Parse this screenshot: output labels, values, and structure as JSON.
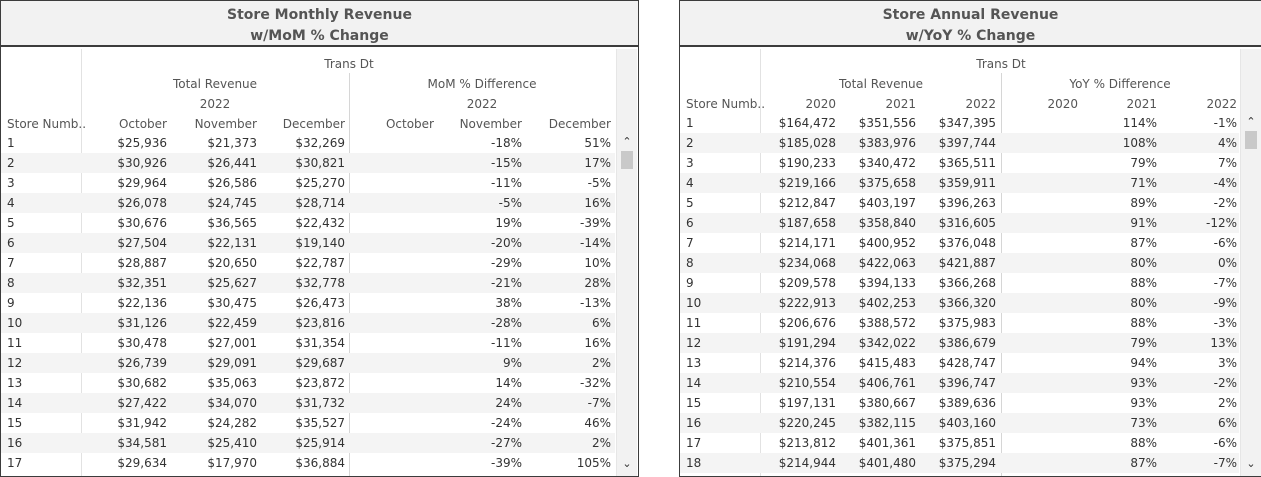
{
  "left": {
    "title_line1": "Store Monthly Revenue",
    "title_line2": "w/MoM % Change",
    "trans_dt": "Trans Dt",
    "group_total": "Total Revenue",
    "group_diff": "MoM % Difference",
    "year_total": "2022",
    "year_diff": "2022",
    "row_header": "Store Numb..",
    "months": [
      "October",
      "November",
      "December"
    ],
    "diff_months": [
      "October",
      "November",
      "December"
    ],
    "rows": [
      {
        "store": "1",
        "oct": "$25,936",
        "nov": "$21,373",
        "dec": "$32,269",
        "d_oct": "",
        "d_nov": "-18%",
        "d_dec": "51%"
      },
      {
        "store": "2",
        "oct": "$30,926",
        "nov": "$26,441",
        "dec": "$30,821",
        "d_oct": "",
        "d_nov": "-15%",
        "d_dec": "17%"
      },
      {
        "store": "3",
        "oct": "$29,964",
        "nov": "$26,586",
        "dec": "$25,270",
        "d_oct": "",
        "d_nov": "-11%",
        "d_dec": "-5%"
      },
      {
        "store": "4",
        "oct": "$26,078",
        "nov": "$24,745",
        "dec": "$28,714",
        "d_oct": "",
        "d_nov": "-5%",
        "d_dec": "16%"
      },
      {
        "store": "5",
        "oct": "$30,676",
        "nov": "$36,565",
        "dec": "$22,432",
        "d_oct": "",
        "d_nov": "19%",
        "d_dec": "-39%"
      },
      {
        "store": "6",
        "oct": "$27,504",
        "nov": "$22,131",
        "dec": "$19,140",
        "d_oct": "",
        "d_nov": "-20%",
        "d_dec": "-14%"
      },
      {
        "store": "7",
        "oct": "$28,887",
        "nov": "$20,650",
        "dec": "$22,787",
        "d_oct": "",
        "d_nov": "-29%",
        "d_dec": "10%"
      },
      {
        "store": "8",
        "oct": "$32,351",
        "nov": "$25,627",
        "dec": "$32,778",
        "d_oct": "",
        "d_nov": "-21%",
        "d_dec": "28%"
      },
      {
        "store": "9",
        "oct": "$22,136",
        "nov": "$30,475",
        "dec": "$26,473",
        "d_oct": "",
        "d_nov": "38%",
        "d_dec": "-13%"
      },
      {
        "store": "10",
        "oct": "$31,126",
        "nov": "$22,459",
        "dec": "$23,816",
        "d_oct": "",
        "d_nov": "-28%",
        "d_dec": "6%"
      },
      {
        "store": "11",
        "oct": "$30,478",
        "nov": "$27,001",
        "dec": "$31,354",
        "d_oct": "",
        "d_nov": "-11%",
        "d_dec": "16%"
      },
      {
        "store": "12",
        "oct": "$26,739",
        "nov": "$29,091",
        "dec": "$29,687",
        "d_oct": "",
        "d_nov": "9%",
        "d_dec": "2%"
      },
      {
        "store": "13",
        "oct": "$30,682",
        "nov": "$35,063",
        "dec": "$23,872",
        "d_oct": "",
        "d_nov": "14%",
        "d_dec": "-32%"
      },
      {
        "store": "14",
        "oct": "$27,422",
        "nov": "$34,070",
        "dec": "$31,732",
        "d_oct": "",
        "d_nov": "24%",
        "d_dec": "-7%"
      },
      {
        "store": "15",
        "oct": "$31,942",
        "nov": "$24,282",
        "dec": "$35,527",
        "d_oct": "",
        "d_nov": "-24%",
        "d_dec": "46%"
      },
      {
        "store": "16",
        "oct": "$34,581",
        "nov": "$25,410",
        "dec": "$25,914",
        "d_oct": "",
        "d_nov": "-27%",
        "d_dec": "2%"
      },
      {
        "store": "17",
        "oct": "$29,634",
        "nov": "$17,970",
        "dec": "$36,884",
        "d_oct": "",
        "d_nov": "-39%",
        "d_dec": "105%"
      }
    ]
  },
  "right": {
    "title_line1": "Store Annual Revenue",
    "title_line2": "w/YoY % Change",
    "trans_dt": "Trans Dt",
    "group_total": "Total Revenue",
    "group_diff": "YoY % Difference",
    "row_header": "Store Numb..",
    "years": [
      "2020",
      "2021",
      "2022"
    ],
    "diff_years": [
      "2020",
      "2021",
      "2022"
    ],
    "rows": [
      {
        "store": "1",
        "y2020": "$164,472",
        "y2021": "$351,556",
        "y2022": "$347,395",
        "d2020": "",
        "d2021": "114%",
        "d2022": "-1%"
      },
      {
        "store": "2",
        "y2020": "$185,028",
        "y2021": "$383,976",
        "y2022": "$397,744",
        "d2020": "",
        "d2021": "108%",
        "d2022": "4%"
      },
      {
        "store": "3",
        "y2020": "$190,233",
        "y2021": "$340,472",
        "y2022": "$365,511",
        "d2020": "",
        "d2021": "79%",
        "d2022": "7%"
      },
      {
        "store": "4",
        "y2020": "$219,166",
        "y2021": "$375,658",
        "y2022": "$359,911",
        "d2020": "",
        "d2021": "71%",
        "d2022": "-4%"
      },
      {
        "store": "5",
        "y2020": "$212,847",
        "y2021": "$403,197",
        "y2022": "$396,263",
        "d2020": "",
        "d2021": "89%",
        "d2022": "-2%"
      },
      {
        "store": "6",
        "y2020": "$187,658",
        "y2021": "$358,840",
        "y2022": "$316,605",
        "d2020": "",
        "d2021": "91%",
        "d2022": "-12%"
      },
      {
        "store": "7",
        "y2020": "$214,171",
        "y2021": "$400,952",
        "y2022": "$376,048",
        "d2020": "",
        "d2021": "87%",
        "d2022": "-6%"
      },
      {
        "store": "8",
        "y2020": "$234,068",
        "y2021": "$422,063",
        "y2022": "$421,887",
        "d2020": "",
        "d2021": "80%",
        "d2022": "0%"
      },
      {
        "store": "9",
        "y2020": "$209,578",
        "y2021": "$394,133",
        "y2022": "$366,268",
        "d2020": "",
        "d2021": "88%",
        "d2022": "-7%"
      },
      {
        "store": "10",
        "y2020": "$222,913",
        "y2021": "$402,253",
        "y2022": "$366,320",
        "d2020": "",
        "d2021": "80%",
        "d2022": "-9%"
      },
      {
        "store": "11",
        "y2020": "$206,676",
        "y2021": "$388,572",
        "y2022": "$375,983",
        "d2020": "",
        "d2021": "88%",
        "d2022": "-3%"
      },
      {
        "store": "12",
        "y2020": "$191,294",
        "y2021": "$342,022",
        "y2022": "$386,679",
        "d2020": "",
        "d2021": "79%",
        "d2022": "13%"
      },
      {
        "store": "13",
        "y2020": "$214,376",
        "y2021": "$415,483",
        "y2022": "$428,747",
        "d2020": "",
        "d2021": "94%",
        "d2022": "3%"
      },
      {
        "store": "14",
        "y2020": "$210,554",
        "y2021": "$406,761",
        "y2022": "$396,747",
        "d2020": "",
        "d2021": "93%",
        "d2022": "-2%"
      },
      {
        "store": "15",
        "y2020": "$197,131",
        "y2021": "$380,667",
        "y2022": "$389,636",
        "d2020": "",
        "d2021": "93%",
        "d2022": "2%"
      },
      {
        "store": "16",
        "y2020": "$220,245",
        "y2021": "$382,115",
        "y2022": "$403,160",
        "d2020": "",
        "d2021": "73%",
        "d2022": "6%"
      },
      {
        "store": "17",
        "y2020": "$213,812",
        "y2021": "$401,361",
        "y2022": "$375,851",
        "d2020": "",
        "d2021": "88%",
        "d2022": "-6%"
      },
      {
        "store": "18",
        "y2020": "$214,944",
        "y2021": "$401,480",
        "y2022": "$375,294",
        "d2020": "",
        "d2021": "87%",
        "d2022": "-7%"
      }
    ]
  },
  "scrollbar": {
    "up_icon": "chevron-up-icon",
    "down_icon": "chevron-down-icon"
  }
}
